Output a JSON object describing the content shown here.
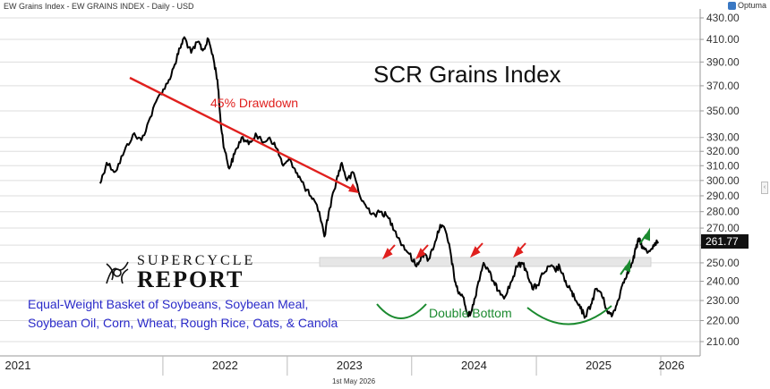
{
  "header": {
    "left": "EW Grains Index - EW GRAINS INDEX - Daily - USD",
    "brand": "Optuma"
  },
  "annotations": {
    "drawdown": "45% Drawdown",
    "double_bottom": "Double Bottom",
    "description_line1": "Equal-Weight Basket of Soybeans, Soybean Meal,",
    "description_line2": "Soybean Oil, Corn, Wheat, Rough Rice, Oats, & Canola"
  },
  "logo": {
    "line1": "SUPERCYCLE",
    "line2": "REPORT"
  },
  "footer": {
    "date": "1st May 2026"
  },
  "colors": {
    "price": "#000000",
    "red_arrow": "#e0201e",
    "green_arrow": "#1b8a2f",
    "support_band": "#e6e6e6",
    "grid": "#dddddd"
  },
  "chart_data": {
    "type": "line",
    "title": "SCR Grains Index",
    "scale": "log",
    "ylim": [
      200,
      435
    ],
    "y_ticks": [
      430,
      410,
      390,
      370,
      350,
      330,
      320,
      310,
      300,
      290,
      280,
      270,
      260,
      250,
      240,
      230,
      220,
      210
    ],
    "x_labels": [
      "2021",
      "2022",
      "2023",
      "2024",
      "2025",
      "2026"
    ],
    "last_value": "261.77",
    "support_band": [
      248,
      253
    ],
    "series": [
      {
        "points": [
          [
            "2021-07-01",
            298
          ],
          [
            "2021-07-20",
            312
          ],
          [
            "2021-08-15",
            306
          ],
          [
            "2021-09-10",
            320
          ],
          [
            "2021-10-05",
            332
          ],
          [
            "2021-10-30",
            328
          ],
          [
            "2021-11-25",
            345
          ],
          [
            "2021-12-20",
            362
          ],
          [
            "2022-01-15",
            372
          ],
          [
            "2022-02-05",
            388
          ],
          [
            "2022-02-20",
            402
          ],
          [
            "2022-03-05",
            412
          ],
          [
            "2022-03-25",
            398
          ],
          [
            "2022-04-15",
            408
          ],
          [
            "2022-04-28",
            400
          ],
          [
            "2022-05-15",
            410
          ],
          [
            "2022-05-30",
            392
          ],
          [
            "2022-06-10",
            375
          ],
          [
            "2022-06-20",
            340
          ],
          [
            "2022-06-30",
            322
          ],
          [
            "2022-07-15",
            308
          ],
          [
            "2022-07-30",
            318
          ],
          [
            "2022-08-20",
            330
          ],
          [
            "2022-09-10",
            325
          ],
          [
            "2022-09-30",
            333
          ],
          [
            "2022-10-20",
            326
          ],
          [
            "2022-11-10",
            330
          ],
          [
            "2022-12-01",
            322
          ],
          [
            "2022-12-20",
            310
          ],
          [
            "2023-01-10",
            314
          ],
          [
            "2023-01-30",
            305
          ],
          [
            "2023-02-20",
            296
          ],
          [
            "2023-03-15",
            288
          ],
          [
            "2023-04-05",
            280
          ],
          [
            "2023-04-20",
            265
          ],
          [
            "2023-05-05",
            282
          ],
          [
            "2023-05-25",
            300
          ],
          [
            "2023-06-10",
            312
          ],
          [
            "2023-06-25",
            300
          ],
          [
            "2023-07-15",
            305
          ],
          [
            "2023-08-05",
            288
          ],
          [
            "2023-08-25",
            282
          ],
          [
            "2023-09-15",
            278
          ],
          [
            "2023-10-05",
            280
          ],
          [
            "2023-10-25",
            276
          ],
          [
            "2023-11-15",
            268
          ],
          [
            "2023-12-05",
            260
          ],
          [
            "2023-12-25",
            255
          ],
          [
            "2024-01-15",
            248
          ],
          [
            "2024-02-01",
            255
          ],
          [
            "2024-02-20",
            252
          ],
          [
            "2024-03-10",
            262
          ],
          [
            "2024-03-25",
            272
          ],
          [
            "2024-04-10",
            268
          ],
          [
            "2024-04-25",
            255
          ],
          [
            "2024-05-05",
            242
          ],
          [
            "2024-05-15",
            235
          ],
          [
            "2024-05-30",
            232
          ],
          [
            "2024-06-15",
            222
          ],
          [
            "2024-07-01",
            228
          ],
          [
            "2024-07-15",
            240
          ],
          [
            "2024-07-30",
            250
          ],
          [
            "2024-08-15",
            245
          ],
          [
            "2024-09-01",
            238
          ],
          [
            "2024-09-15",
            235
          ],
          [
            "2024-10-01",
            232
          ],
          [
            "2024-10-20",
            240
          ],
          [
            "2024-11-05",
            248
          ],
          [
            "2024-11-20",
            250
          ],
          [
            "2024-12-05",
            245
          ],
          [
            "2024-12-20",
            236
          ],
          [
            "2025-01-05",
            238
          ],
          [
            "2025-01-20",
            244
          ],
          [
            "2025-02-10",
            248
          ],
          [
            "2025-02-25",
            246
          ],
          [
            "2025-03-10",
            248
          ],
          [
            "2025-03-25",
            240
          ],
          [
            "2025-04-10",
            236
          ],
          [
            "2025-04-25",
            230
          ],
          [
            "2025-05-10",
            226
          ],
          [
            "2025-05-25",
            222
          ],
          [
            "2025-06-10",
            228
          ],
          [
            "2025-06-25",
            236
          ],
          [
            "2025-07-10",
            234
          ],
          [
            "2025-07-25",
            226
          ],
          [
            "2025-08-10",
            222
          ],
          [
            "2025-08-25",
            228
          ],
          [
            "2025-09-10",
            238
          ],
          [
            "2025-09-25",
            245
          ],
          [
            "2025-10-10",
            250
          ],
          [
            "2025-10-20",
            258
          ],
          [
            "2025-10-30",
            264
          ],
          [
            "2025-11-10",
            258
          ],
          [
            "2025-11-25",
            256
          ],
          [
            "2025-12-10",
            260
          ],
          [
            "2025-12-25",
            262
          ]
        ]
      }
    ]
  }
}
